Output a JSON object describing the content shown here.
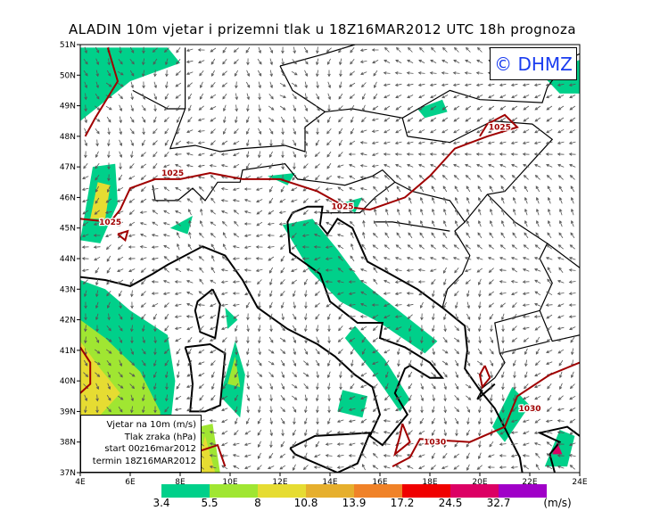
{
  "title": "ALADIN 10m vjetar i prizemni tlak u 18Z16MAR2012 UTC 18h prognoza",
  "logo": "© DHMZ",
  "legend_box": [
    "Vjetar na 10m (m/s)",
    "Tlak zraka (hPa)",
    "start 00z16mar2012",
    "termin 18Z16MAR2012"
  ],
  "axes": {
    "lat_labels": [
      "51N",
      "50N",
      "49N",
      "48N",
      "47N",
      "46N",
      "45N",
      "44N",
      "43N",
      "42N",
      "41N",
      "40N",
      "39N",
      "38N",
      "37N"
    ],
    "lon_labels": [
      "4E",
      "6E",
      "8E",
      "10E",
      "12E",
      "14E",
      "16E",
      "18E",
      "20E",
      "22E",
      "24E"
    ]
  },
  "isobar_labels": [
    "1025",
    "1025",
    "1025",
    "1025",
    "1030",
    "1030"
  ],
  "colorbar": {
    "colors": [
      "#00d08a",
      "#a0e632",
      "#e6dc32",
      "#e6af2d",
      "#f08228",
      "#f00000",
      "#dc0064",
      "#a000c8"
    ],
    "labels": [
      "3.4",
      "5.5",
      "8",
      "10.8",
      "13.9",
      "17.2",
      "24.5",
      "32.7"
    ],
    "unit": "(m/s)"
  }
}
